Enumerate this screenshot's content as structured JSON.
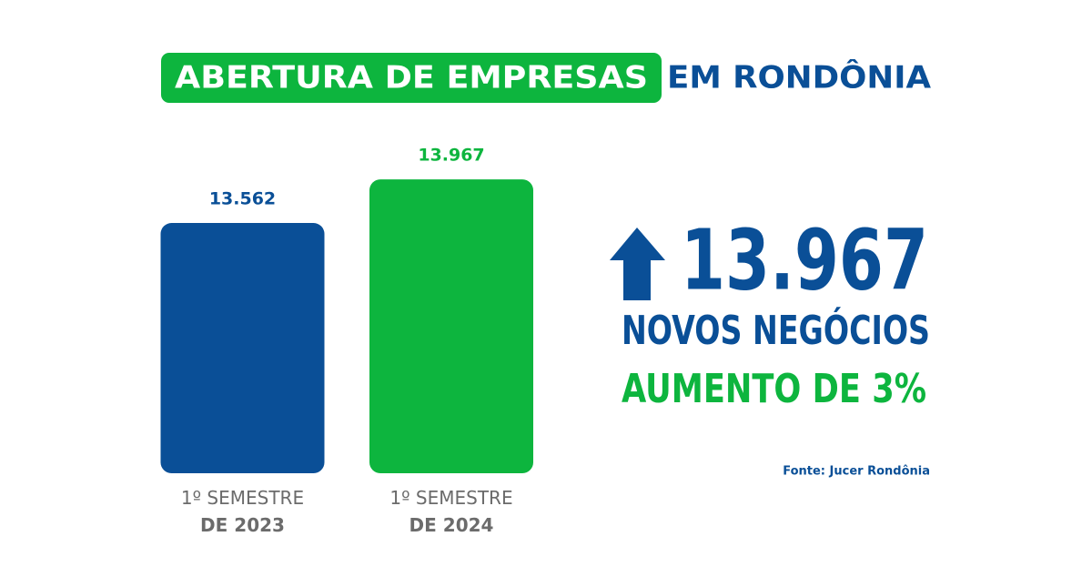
{
  "chart_data": {
    "type": "bar",
    "title": "ABERTURA DE EMPRESAS",
    "subtitle": "EM RONDÔNIA",
    "categories": [
      "1º SEMESTRE\nDE 2023",
      "1º SEMESTRE\nDE 2024"
    ],
    "values": [
      13562,
      13967
    ],
    "value_labels": [
      "13.562",
      "13.967"
    ],
    "colors": [
      "#0a4f97",
      "#0db53e"
    ],
    "ylim": [
      11240,
      14200
    ],
    "annotations": [
      "13.967",
      "NOVOS NEGÓCIOS",
      "AUMENTO DE 3%"
    ],
    "source": "Fonte: Jucer Rondônia"
  }
}
